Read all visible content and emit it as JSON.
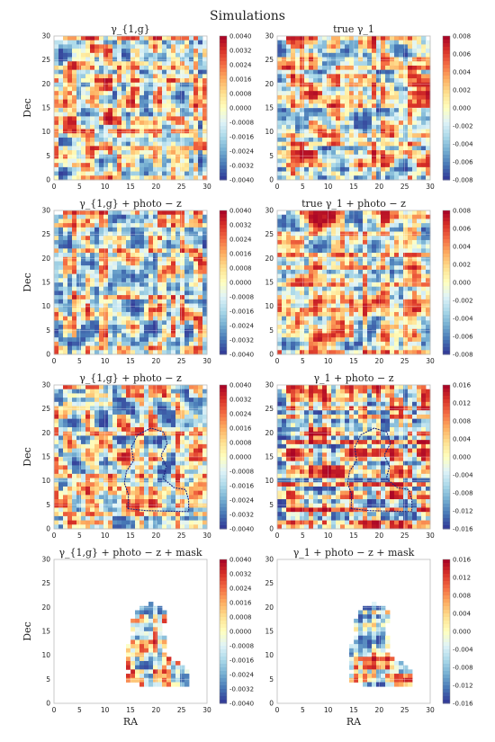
{
  "figure_title": "Simulations",
  "colors": {
    "colormap": [
      "#313695",
      "#4575b4",
      "#74add1",
      "#abd9e9",
      "#e0f3f8",
      "#ffffbf",
      "#fee090",
      "#fdae61",
      "#f46d43",
      "#d73027",
      "#a50026"
    ],
    "mask_outline": "#1a237e",
    "frame": "#bbbbbb"
  },
  "chart_data": [
    {
      "type": "heatmap",
      "title": "γ_{1,g}",
      "xlabel": "",
      "ylabel": "Dec",
      "xlim": [
        0,
        30
      ],
      "ylim": [
        0,
        30
      ],
      "xticks": [
        "0",
        "5",
        "10",
        "15",
        "20",
        "25",
        "30"
      ],
      "yticks": [
        "0",
        "5",
        "10",
        "15",
        "20",
        "25",
        "30"
      ],
      "colorbar": {
        "range": [
          -0.004,
          0.004
        ],
        "ticks": [
          "0.0040",
          "0.0032",
          "0.0024",
          "0.0016",
          "0.0008",
          "0.0000",
          "-0.0008",
          "-0.0016",
          "-0.0024",
          "-0.0032",
          "-0.0040"
        ]
      },
      "colormap": "RdYlBu_r",
      "grid": true
    },
    {
      "type": "heatmap",
      "title": "true γ_1",
      "xlabel": "",
      "ylabel": "",
      "xlim": [
        0,
        30
      ],
      "ylim": [
        0,
        30
      ],
      "xticks": [
        "0",
        "5",
        "10",
        "15",
        "20",
        "25",
        "30"
      ],
      "yticks": [
        "0",
        "5",
        "10",
        "15",
        "20",
        "25",
        "30"
      ],
      "colorbar": {
        "range": [
          -0.008,
          0.008
        ],
        "ticks": [
          "0.008",
          "0.006",
          "0.004",
          "0.002",
          "0.000",
          "-0.002",
          "-0.004",
          "-0.006",
          "-0.008"
        ]
      },
      "colormap": "RdYlBu_r",
      "grid": true
    },
    {
      "type": "heatmap",
      "title": "γ_{1,g} + photo − z",
      "xlabel": "",
      "ylabel": "Dec",
      "xlim": [
        0,
        30
      ],
      "ylim": [
        0,
        30
      ],
      "xticks": [
        "0",
        "5",
        "10",
        "15",
        "20",
        "25",
        "30"
      ],
      "yticks": [
        "0",
        "5",
        "10",
        "15",
        "20",
        "25",
        "30"
      ],
      "colorbar": {
        "range": [
          -0.004,
          0.004
        ],
        "ticks": [
          "0.0040",
          "0.0032",
          "0.0024",
          "0.0016",
          "0.0008",
          "0.0000",
          "-0.0008",
          "-0.0016",
          "-0.0024",
          "-0.0032",
          "-0.0040"
        ]
      },
      "colormap": "RdYlBu_r",
      "grid": true
    },
    {
      "type": "heatmap",
      "title": "true γ_1 + photo − z",
      "xlabel": "",
      "ylabel": "",
      "xlim": [
        0,
        30
      ],
      "ylim": [
        0,
        30
      ],
      "xticks": [
        "0",
        "5",
        "10",
        "15",
        "20",
        "25",
        "30"
      ],
      "yticks": [
        "0",
        "5",
        "10",
        "15",
        "20",
        "25",
        "30"
      ],
      "colorbar": {
        "range": [
          -0.008,
          0.008
        ],
        "ticks": [
          "0.008",
          "0.006",
          "0.004",
          "0.002",
          "0.000",
          "-0.002",
          "-0.004",
          "-0.006",
          "-0.008"
        ]
      },
      "colormap": "RdYlBu_r",
      "grid": true
    },
    {
      "type": "heatmap",
      "title": "γ_{1,g} + photo − z",
      "xlabel": "",
      "ylabel": "Dec",
      "xlim": [
        0,
        30
      ],
      "ylim": [
        0,
        30
      ],
      "xticks": [
        "0",
        "5",
        "10",
        "15",
        "20",
        "25",
        "30"
      ],
      "yticks": [
        "0",
        "5",
        "10",
        "15",
        "20",
        "25",
        "30"
      ],
      "colorbar": {
        "range": [
          -0.004,
          0.004
        ],
        "ticks": [
          "0.0040",
          "0.0032",
          "0.0024",
          "0.0016",
          "0.0008",
          "0.0000",
          "-0.0008",
          "-0.0016",
          "-0.0024",
          "-0.0032",
          "-0.0040"
        ]
      },
      "colormap": "RdYlBu_r",
      "grid": true,
      "mask_outline": true
    },
    {
      "type": "heatmap",
      "title": "γ_1 + photo − z",
      "xlabel": "",
      "ylabel": "",
      "xlim": [
        0,
        30
      ],
      "ylim": [
        0,
        30
      ],
      "xticks": [
        "0",
        "5",
        "10",
        "15",
        "20",
        "25",
        "30"
      ],
      "yticks": [
        "0",
        "5",
        "10",
        "15",
        "20",
        "25",
        "30"
      ],
      "colorbar": {
        "range": [
          -0.016,
          0.016
        ],
        "ticks": [
          "0.016",
          "0.012",
          "0.008",
          "0.004",
          "0.000",
          "-0.004",
          "-0.008",
          "-0.012",
          "-0.016"
        ]
      },
      "colormap": "RdYlBu_r",
      "grid": true,
      "mask_outline": true
    },
    {
      "type": "heatmap",
      "title": "γ_{1,g} + photo − z + mask",
      "xlabel": "RA",
      "ylabel": "Dec",
      "xlim": [
        0,
        30
      ],
      "ylim": [
        0,
        30
      ],
      "xticks": [
        "0",
        "5",
        "10",
        "15",
        "20",
        "25",
        "30"
      ],
      "yticks": [
        "0",
        "5",
        "10",
        "15",
        "20",
        "25",
        "30"
      ],
      "colorbar": {
        "range": [
          -0.004,
          0.004
        ],
        "ticks": [
          "0.0040",
          "0.0032",
          "0.0024",
          "0.0016",
          "0.0008",
          "0.0000",
          "-0.0008",
          "-0.0016",
          "-0.0024",
          "-0.0032",
          "-0.0040"
        ]
      },
      "colormap": "RdYlBu_r",
      "grid": true,
      "masked": true
    },
    {
      "type": "heatmap",
      "title": "γ_1 + photo − z + mask",
      "xlabel": "RA",
      "ylabel": "",
      "xlim": [
        0,
        30
      ],
      "ylim": [
        0,
        30
      ],
      "xticks": [
        "0",
        "5",
        "10",
        "15",
        "20",
        "25",
        "30"
      ],
      "yticks": [
        "0",
        "5",
        "10",
        "15",
        "20",
        "25",
        "30"
      ],
      "colorbar": {
        "range": [
          -0.016,
          0.016
        ],
        "ticks": [
          "0.016",
          "0.012",
          "0.008",
          "0.004",
          "0.000",
          "-0.004",
          "-0.008",
          "-0.012",
          "-0.016"
        ]
      },
      "colormap": "RdYlBu_r",
      "grid": true,
      "masked": true
    }
  ]
}
